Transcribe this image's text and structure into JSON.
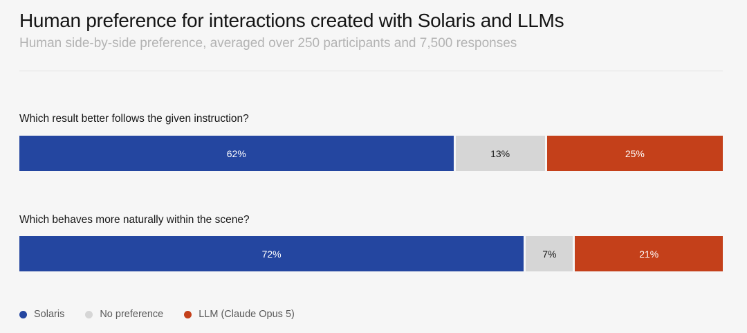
{
  "header": {
    "title": "Human preference for interactions created with Solaris and LLMs",
    "subtitle": "Human side-by-side preference, averaged over 250 participants and 7,500 responses"
  },
  "colors": {
    "solaris": "#2446a0",
    "no_preference": "#d6d6d6",
    "llm": "#c4401a"
  },
  "chart_data": {
    "type": "bar",
    "orientation": "horizontal-stacked-100",
    "categories": [
      "Which result better follows the given instruction?",
      "Which behaves more naturally within the scene?"
    ],
    "series": [
      {
        "name": "Solaris",
        "values": [
          62,
          72
        ],
        "labels": [
          "62%",
          "72%"
        ]
      },
      {
        "name": "No preference",
        "values": [
          13,
          7
        ],
        "labels": [
          "13%",
          "7%"
        ]
      },
      {
        "name": "LLM (Claude Opus 5)",
        "values": [
          25,
          21
        ],
        "labels": [
          "25%",
          "21%"
        ]
      }
    ],
    "title": "Human preference for interactions created with Solaris and LLMs",
    "subtitle": "Human side-by-side preference, averaged over 250 participants and 7,500 responses",
    "legend_position": "bottom-left",
    "grid": false
  }
}
